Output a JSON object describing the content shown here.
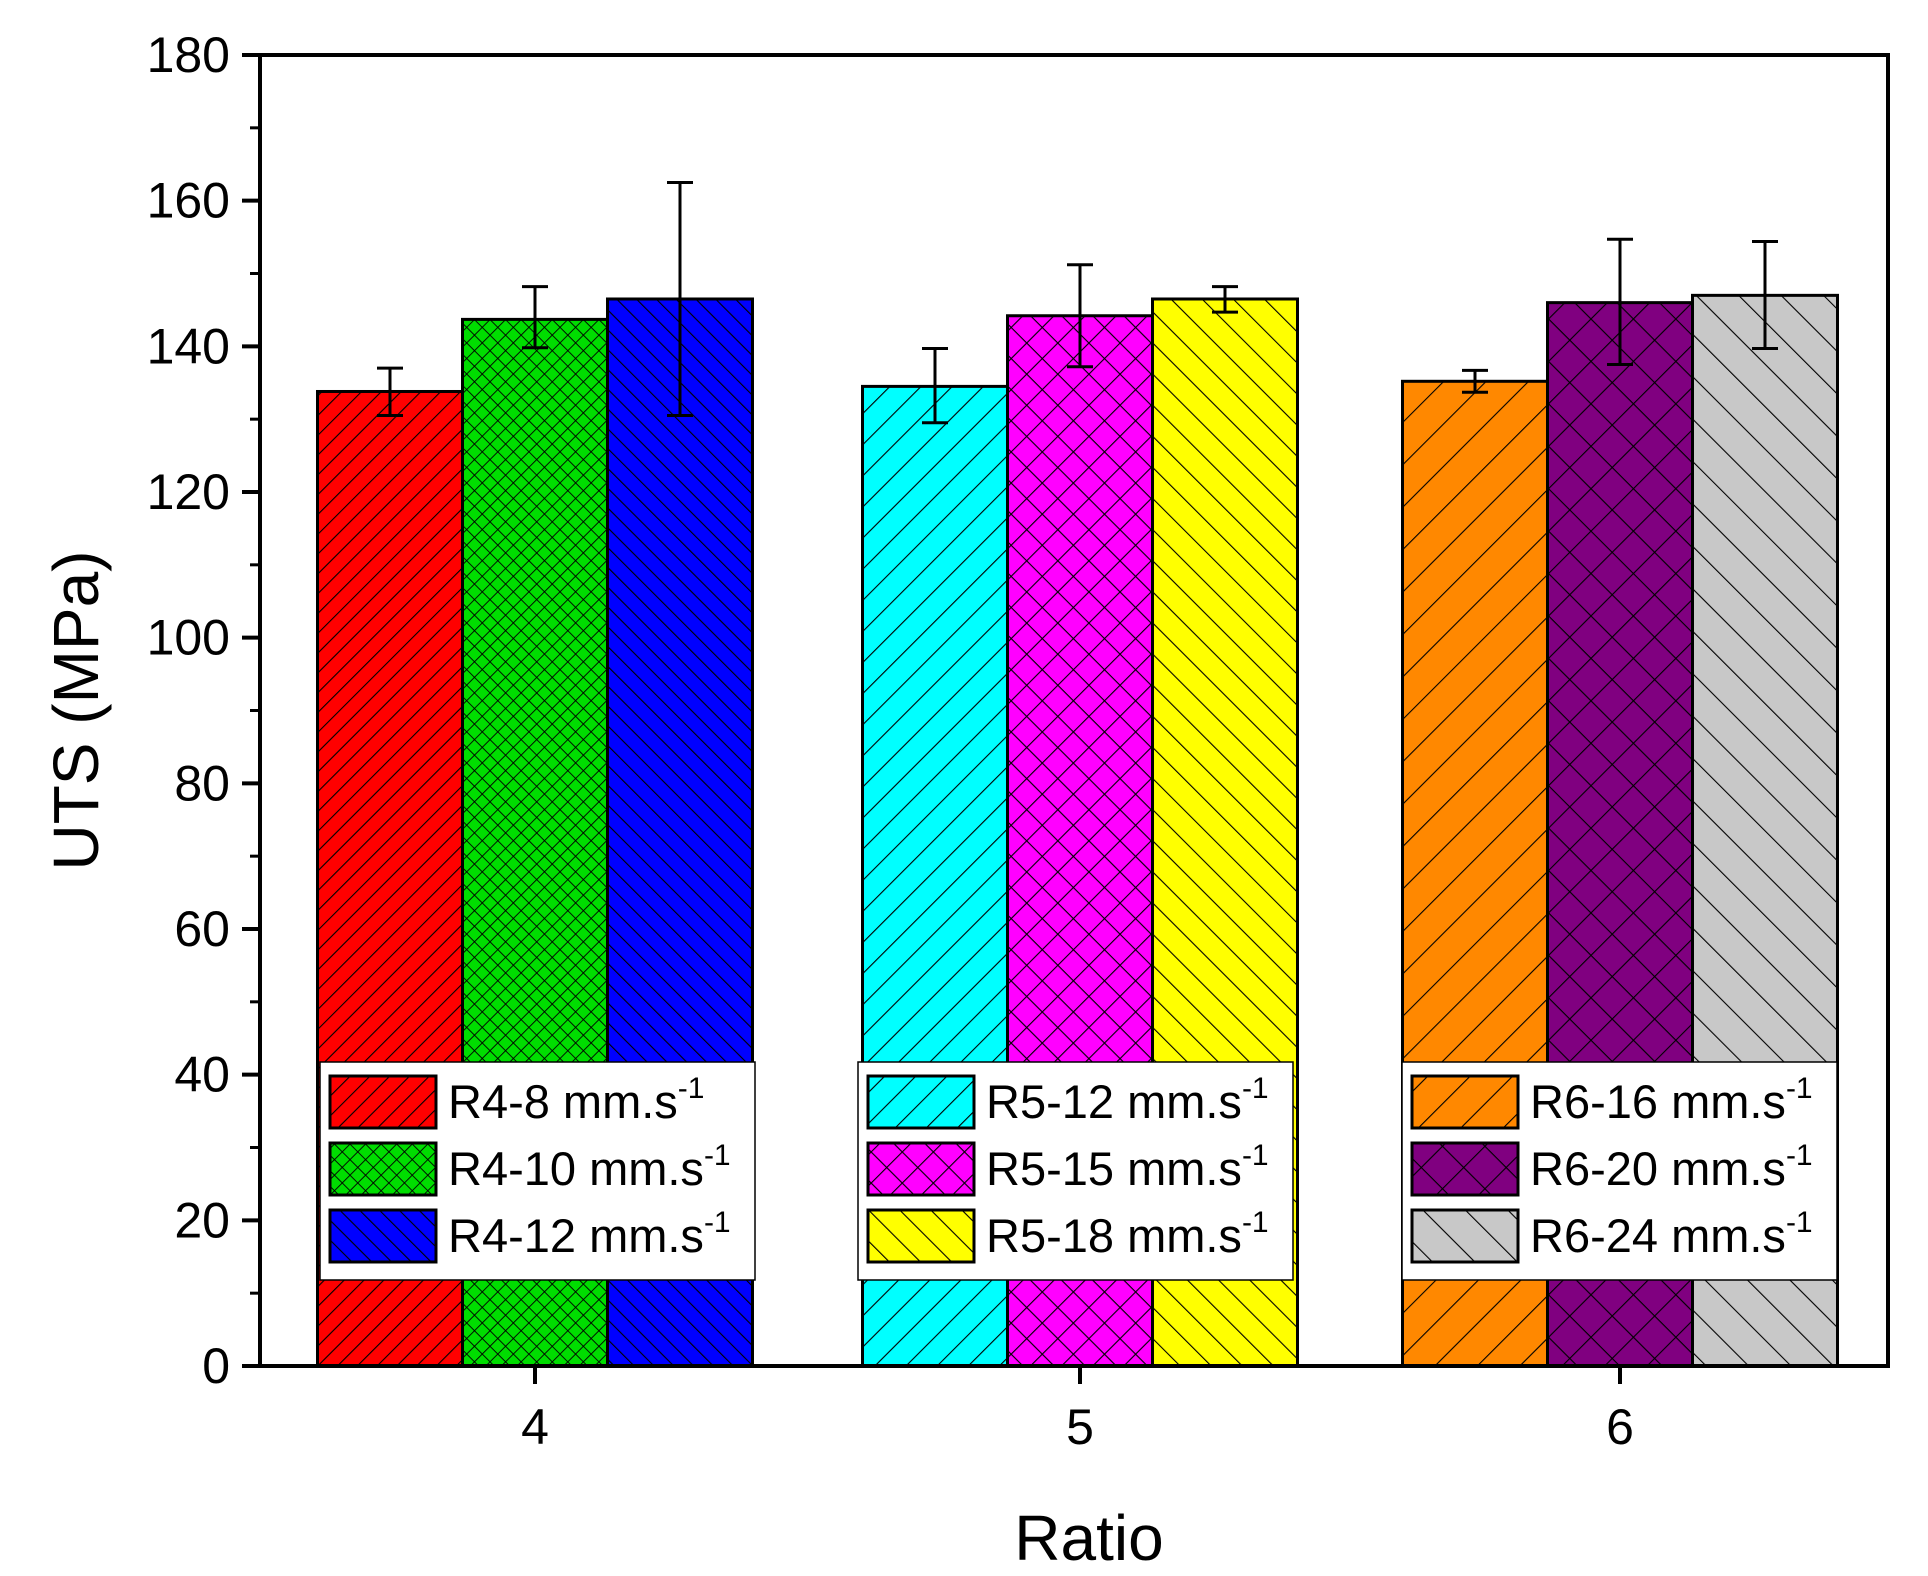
{
  "chart_data": {
    "type": "bar",
    "title": "",
    "xlabel": "Ratio",
    "ylabel": "UTS (MPa)",
    "ylim": [
      0,
      180
    ],
    "y_major_ticks": [
      0,
      20,
      40,
      60,
      80,
      100,
      120,
      140,
      160,
      180
    ],
    "y_tick_labels": [
      "0",
      "20",
      "40",
      "60",
      "80",
      "100",
      "120",
      "140",
      "160",
      "180"
    ],
    "categories": [
      "4",
      "5",
      "6"
    ],
    "legend_unit": "mm.s",
    "legend_unit_sup": "-1",
    "groups": [
      {
        "category": "4",
        "bars": [
          {
            "name": "R4-8",
            "value": 133.8,
            "err_low": 130.5,
            "err_high": 137.0,
            "color": "#ff0000",
            "pattern": "diag-right-dense"
          },
          {
            "name": "R4-10",
            "value": 143.7,
            "err_low": 139.8,
            "err_high": 148.2,
            "color": "#00dd00",
            "pattern": "cross-dense"
          },
          {
            "name": "R4-12",
            "value": 146.5,
            "err_low": 130.5,
            "err_high": 162.5,
            "color": "#0000ff",
            "pattern": "diag-left-dense"
          }
        ]
      },
      {
        "category": "5",
        "bars": [
          {
            "name": "R5-12",
            "value": 134.5,
            "err_low": 129.5,
            "err_high": 139.7,
            "color": "#00ffff",
            "pattern": "diag-right"
          },
          {
            "name": "R5-15",
            "value": 144.2,
            "err_low": 137.2,
            "err_high": 151.2,
            "color": "#ff00ff",
            "pattern": "cross"
          },
          {
            "name": "R5-18",
            "value": 146.5,
            "err_low": 144.7,
            "err_high": 148.2,
            "color": "#ffff00",
            "pattern": "diag-left"
          }
        ]
      },
      {
        "category": "6",
        "bars": [
          {
            "name": "R6-16",
            "value": 135.2,
            "err_low": 133.7,
            "err_high": 136.7,
            "color": "#ff8800",
            "pattern": "diag-right-wide"
          },
          {
            "name": "R6-20",
            "value": 146.0,
            "err_low": 137.5,
            "err_high": 154.7,
            "color": "#800080",
            "pattern": "cross-wide"
          },
          {
            "name": "R6-24",
            "value": 147.0,
            "err_low": 139.7,
            "err_high": 154.4,
            "color": "#c8c8c8",
            "pattern": "diag-left-wide"
          }
        ]
      }
    ]
  }
}
